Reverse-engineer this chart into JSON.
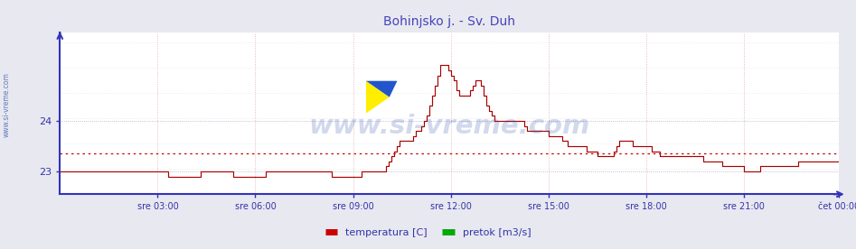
{
  "title": "Bohinjsko j. - Sv. Duh",
  "title_color": "#4444bb",
  "bg_color": "#e8e8f0",
  "plot_bg_color": "#ffffff",
  "grid_color_minor_x": "#ddaaaa",
  "grid_color_minor_y": "#ccccdd",
  "line_color": "#aa0000",
  "avg_line_color": "#cc0000",
  "border_color": "#3333bb",
  "xlabel_color": "#3333aa",
  "ylabel_color": "#3333aa",
  "watermark_color": "#3355aa",
  "watermark_text": "www.si-vreme.com",
  "watermark_alpha": 0.22,
  "x_labels": [
    "sre 03:00",
    "sre 06:00",
    "sre 09:00",
    "sre 12:00",
    "sre 15:00",
    "sre 18:00",
    "sre 21:00",
    "čet 00:00"
  ],
  "yticks": [
    23,
    24
  ],
  "ylim_min": 22.55,
  "ylim_max": 25.75,
  "xlim_min": 0,
  "xlim_max": 287,
  "avg_value": 23.35,
  "legend": [
    {
      "label": "temperatura [C]",
      "color": "#cc0000"
    },
    {
      "label": "pretok [m3/s]",
      "color": "#00aa00"
    }
  ],
  "n_points": 288,
  "sidebar_text": "www.si-vreme.com",
  "temp_data": [
    23.0,
    23.0,
    23.0,
    23.0,
    23.0,
    23.0,
    23.0,
    23.0,
    23.0,
    23.0,
    23.0,
    23.0,
    23.0,
    23.0,
    23.0,
    23.0,
    23.0,
    23.0,
    23.0,
    23.0,
    23.0,
    23.0,
    23.0,
    23.0,
    23.0,
    23.0,
    23.0,
    23.0,
    23.0,
    23.0,
    23.0,
    23.0,
    23.0,
    23.0,
    23.0,
    23.0,
    23.0,
    23.0,
    23.0,
    23.0,
    22.9,
    22.9,
    22.9,
    22.9,
    22.9,
    22.9,
    22.9,
    22.9,
    22.9,
    22.9,
    22.9,
    22.9,
    23.0,
    23.0,
    23.0,
    23.0,
    23.0,
    23.0,
    23.0,
    23.0,
    23.0,
    23.0,
    23.0,
    23.0,
    22.9,
    22.9,
    22.9,
    22.9,
    22.9,
    22.9,
    22.9,
    22.9,
    22.9,
    22.9,
    22.9,
    22.9,
    23.0,
    23.0,
    23.0,
    23.0,
    23.0,
    23.0,
    23.0,
    23.0,
    23.0,
    23.0,
    23.0,
    23.0,
    23.0,
    23.0,
    23.0,
    23.0,
    23.0,
    23.0,
    23.0,
    23.0,
    23.0,
    23.0,
    23.0,
    23.0,
    22.9,
    22.9,
    22.9,
    22.9,
    22.9,
    22.9,
    22.9,
    22.9,
    22.9,
    22.9,
    22.9,
    23.0,
    23.0,
    23.0,
    23.0,
    23.0,
    23.0,
    23.0,
    23.0,
    23.0,
    23.1,
    23.2,
    23.3,
    23.4,
    23.5,
    23.6,
    23.6,
    23.6,
    23.6,
    23.6,
    23.7,
    23.8,
    23.8,
    23.9,
    24.0,
    24.1,
    24.3,
    24.5,
    24.7,
    24.9,
    25.1,
    25.1,
    25.1,
    25.0,
    24.9,
    24.8,
    24.6,
    24.5,
    24.5,
    24.5,
    24.5,
    24.6,
    24.7,
    24.8,
    24.8,
    24.7,
    24.5,
    24.3,
    24.2,
    24.1,
    24.0,
    24.0,
    24.0,
    24.0,
    24.0,
    24.0,
    24.0,
    24.0,
    24.0,
    24.0,
    24.0,
    23.9,
    23.8,
    23.8,
    23.8,
    23.8,
    23.8,
    23.8,
    23.8,
    23.8,
    23.7,
    23.7,
    23.7,
    23.7,
    23.7,
    23.6,
    23.6,
    23.5,
    23.5,
    23.5,
    23.5,
    23.5,
    23.5,
    23.5,
    23.4,
    23.4,
    23.4,
    23.4,
    23.3,
    23.3,
    23.3,
    23.3,
    23.3,
    23.3,
    23.4,
    23.5,
    23.6,
    23.6,
    23.6,
    23.6,
    23.6,
    23.5,
    23.5,
    23.5,
    23.5,
    23.5,
    23.5,
    23.5,
    23.4,
    23.4,
    23.4,
    23.3,
    23.3,
    23.3,
    23.3,
    23.3,
    23.3,
    23.3,
    23.3,
    23.3,
    23.3,
    23.3,
    23.3,
    23.3,
    23.3,
    23.3,
    23.3,
    23.2,
    23.2,
    23.2,
    23.2,
    23.2,
    23.2,
    23.2,
    23.1,
    23.1,
    23.1,
    23.1,
    23.1,
    23.1,
    23.1,
    23.1,
    23.0,
    23.0,
    23.0,
    23.0,
    23.0,
    23.0,
    23.1,
    23.1,
    23.1,
    23.1,
    23.1,
    23.1,
    23.1,
    23.1,
    23.1,
    23.1,
    23.1,
    23.1,
    23.1,
    23.1,
    23.2,
    23.2,
    23.2,
    23.2,
    23.2,
    23.2,
    23.2,
    23.2,
    23.2,
    23.2,
    23.2,
    23.2,
    23.2,
    23.2,
    23.2,
    23.2
  ]
}
